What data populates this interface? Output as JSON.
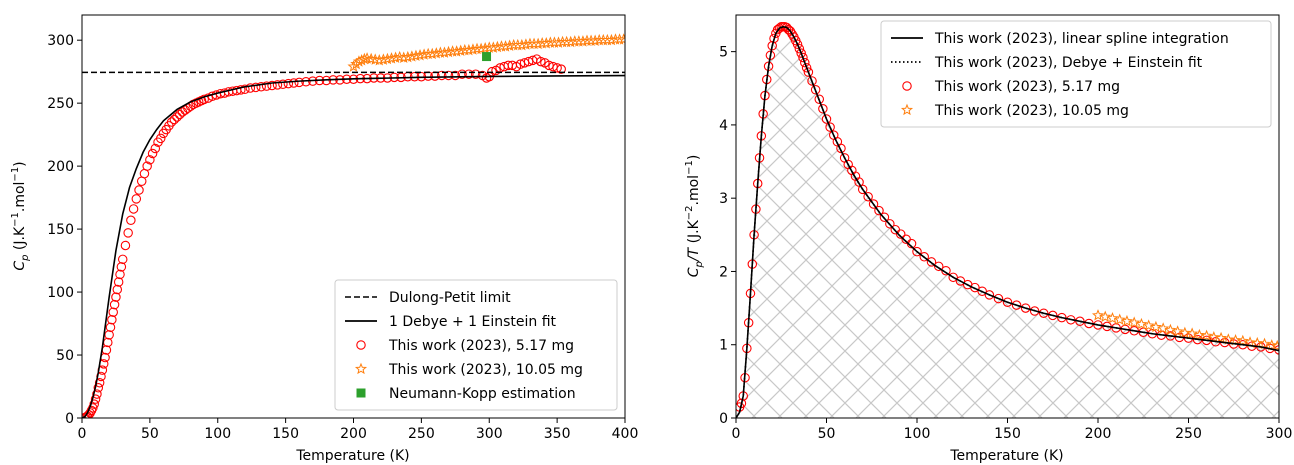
{
  "chart_data": [
    {
      "type": "scatter",
      "xlabel": "Temperature (K)",
      "ylabel_main": "C",
      "ylabel_sub": "p",
      "ylabel_unit": " (J.K",
      "ylabel_exp1": "−1",
      "ylabel_mid": ".mol",
      "ylabel_exp2": "−1",
      "ylabel_end": ")",
      "xlim": [
        0,
        400
      ],
      "ylim": [
        0,
        320
      ],
      "xticks": [
        0,
        50,
        100,
        150,
        200,
        250,
        300,
        350,
        400
      ],
      "yticks": [
        0,
        50,
        100,
        150,
        200,
        250,
        300
      ],
      "legend_position": "lower-right",
      "series": [
        {
          "name": "Dulong-Petit limit",
          "kind": "hline",
          "style": "dashed",
          "color": "#000000",
          "y": 274.4
        },
        {
          "name": "1 Debye + 1 Einstein fit",
          "kind": "line",
          "color": "#000000",
          "x": [
            0,
            2,
            4,
            6,
            8,
            10,
            12,
            15,
            20,
            25,
            30,
            35,
            40,
            45,
            50,
            55,
            60,
            70,
            80,
            90,
            100,
            120,
            140,
            160,
            180,
            200,
            250,
            300,
            350,
            400
          ],
          "y": [
            0,
            1,
            4,
            9,
            16,
            25,
            36,
            56,
            96,
            133,
            162,
            183,
            198,
            211,
            221,
            229,
            236,
            245,
            251,
            255,
            258,
            263,
            266,
            267.5,
            268.5,
            269.3,
            270.5,
            271.2,
            271.6,
            271.9
          ]
        },
        {
          "name": "This work (2023), 5.17 mg",
          "kind": "scatter",
          "marker": "circle-open",
          "color": "#ff0000",
          "x": [
            2,
            3,
            4,
            5,
            6,
            7,
            8,
            9,
            10,
            11,
            12,
            13,
            14,
            15,
            16,
            17,
            18,
            19,
            20,
            21,
            22,
            23,
            24,
            25,
            26,
            27,
            28,
            29,
            30,
            32,
            34,
            36,
            38,
            40,
            42,
            44,
            46,
            48,
            50,
            52,
            54,
            56,
            58,
            60,
            62,
            64,
            66,
            68,
            70,
            72,
            74,
            76,
            78,
            80,
            82,
            84,
            86,
            88,
            90,
            93,
            96,
            99,
            102,
            105,
            108,
            111,
            114,
            117,
            120,
            124,
            128,
            132,
            136,
            140,
            144,
            148,
            152,
            156,
            160,
            165,
            170,
            175,
            180,
            185,
            190,
            195,
            200,
            205,
            210,
            215,
            220,
            225,
            230,
            235,
            240,
            245,
            250,
            255,
            260,
            265,
            270,
            275,
            280,
            285,
            290,
            295,
            298,
            300,
            302,
            305,
            308,
            311,
            314,
            317,
            320,
            323,
            326,
            329,
            332,
            335,
            338,
            341,
            344,
            347,
            350,
            353
          ],
          "y": [
            0.3,
            0.8,
            1.5,
            2.6,
            4,
            6,
            8,
            11,
            15,
            19,
            24,
            28,
            33,
            38,
            43,
            48,
            54,
            60,
            66,
            72,
            78,
            84,
            90,
            96,
            102,
            108,
            114,
            120,
            126,
            137,
            147,
            157,
            166,
            174,
            181,
            188,
            194,
            200,
            205,
            210,
            214,
            219,
            222,
            226,
            229,
            232,
            235,
            237,
            239,
            241,
            243,
            244.5,
            246,
            247.5,
            249,
            250,
            251,
            252,
            253,
            254,
            255.5,
            256.5,
            257.5,
            258,
            259,
            259.5,
            260,
            260.5,
            261,
            262,
            262.5,
            263,
            263.5,
            264,
            264.5,
            265,
            265.5,
            266,
            266.5,
            267,
            267.5,
            268,
            268,
            268.5,
            268.5,
            269,
            269,
            269.5,
            269.5,
            270,
            270,
            270,
            270.5,
            270.5,
            271,
            271,
            271,
            271.5,
            271.5,
            272,
            272,
            272,
            273,
            273,
            273,
            272,
            270,
            271,
            275,
            276,
            278,
            279,
            280,
            280,
            279,
            281,
            282,
            283,
            284,
            285,
            283,
            282,
            280,
            279,
            278,
            277
          ]
        },
        {
          "name": "This work (2023), 10.05 mg",
          "kind": "scatter",
          "marker": "star",
          "color": "#ff7f0e",
          "x": [
            200,
            202,
            204,
            206,
            208,
            210,
            213,
            216,
            219,
            222,
            225,
            228,
            231,
            234,
            237,
            240,
            243,
            246,
            249,
            252,
            255,
            258,
            261,
            264,
            267,
            270,
            273,
            276,
            279,
            282,
            285,
            288,
            291,
            294,
            297,
            300,
            303,
            306,
            309,
            312,
            315,
            318,
            321,
            324,
            327,
            330,
            333,
            336,
            339,
            342,
            345,
            348,
            351,
            354,
            357,
            360,
            363,
            366,
            369,
            372,
            375,
            378,
            381,
            384,
            387,
            390,
            393,
            396,
            399
          ],
          "y": [
            279,
            281,
            283,
            284,
            285,
            285.5,
            285,
            284.5,
            284,
            284.5,
            285,
            285.5,
            286,
            286.5,
            286,
            286.5,
            287,
            287.5,
            288,
            288.5,
            289,
            289,
            289.5,
            290,
            290,
            290.5,
            291,
            291,
            291.5,
            292,
            292,
            292.5,
            293,
            293,
            293.5,
            294,
            294,
            294.5,
            295,
            295,
            295.5,
            296,
            296,
            296,
            296.5,
            297,
            297,
            297,
            297.5,
            297.5,
            298,
            298,
            298,
            298.5,
            298.5,
            298.5,
            299,
            299,
            299,
            299.5,
            299.5,
            299.5,
            300,
            300,
            300,
            300,
            300.5,
            300.5,
            300.5
          ]
        },
        {
          "name": "Neumann-Kopp estimation",
          "kind": "scatter",
          "marker": "square",
          "color": "#2ca02c",
          "x": [
            298
          ],
          "y": [
            287
          ]
        }
      ]
    },
    {
      "type": "line",
      "xlabel": "Temperature (K)",
      "ylabel_main": "C",
      "ylabel_sub": "p",
      "ylabel_div": "/T",
      "ylabel_unit": " (J.K",
      "ylabel_exp1": "−2",
      "ylabel_mid": ".mol",
      "ylabel_exp2": "−1",
      "ylabel_end": ")",
      "xlim": [
        0,
        300
      ],
      "ylim": [
        0,
        5.5
      ],
      "xticks": [
        0,
        50,
        100,
        150,
        200,
        250,
        300
      ],
      "yticks": [
        0,
        1,
        2,
        3,
        4,
        5
      ],
      "legend_position": "top-right",
      "hatched_area_under": "This work (2023), linear spline integration",
      "series": [
        {
          "name": "This work (2023), linear spline integration",
          "kind": "line",
          "style": "solid",
          "color": "#000000",
          "x": [
            0,
            2,
            4,
            6,
            8,
            10,
            12,
            14,
            16,
            18,
            20,
            22,
            24,
            26,
            28,
            30,
            32,
            34,
            36,
            38,
            40,
            45,
            50,
            55,
            60,
            65,
            70,
            80,
            90,
            100,
            110,
            120,
            130,
            140,
            150,
            160,
            170,
            180,
            190,
            200,
            210,
            220,
            230,
            240,
            250,
            260,
            270,
            280,
            290,
            300
          ],
          "y": [
            0,
            0.08,
            0.3,
            0.95,
            1.7,
            2.5,
            3.2,
            3.85,
            4.4,
            4.8,
            5.08,
            5.25,
            5.32,
            5.34,
            5.33,
            5.28,
            5.2,
            5.1,
            4.98,
            4.85,
            4.72,
            4.4,
            4.08,
            3.8,
            3.55,
            3.32,
            3.12,
            2.78,
            2.5,
            2.27,
            2.08,
            1.92,
            1.79,
            1.68,
            1.58,
            1.5,
            1.43,
            1.37,
            1.32,
            1.27,
            1.23,
            1.19,
            1.15,
            1.12,
            1.09,
            1.06,
            1.03,
            1.0,
            0.97,
            0.92
          ]
        },
        {
          "name": "This work (2023), Debye + Einstein fit",
          "kind": "line",
          "style": "dotted",
          "color": "#000000",
          "x": [
            0,
            2,
            4,
            6,
            8,
            10,
            12,
            14,
            16,
            18,
            20,
            22,
            24,
            26,
            28,
            30,
            32,
            34,
            36,
            38,
            40,
            45,
            50,
            55,
            60,
            65,
            70,
            80,
            90,
            100,
            110,
            120,
            130,
            140,
            150,
            160,
            170,
            180,
            190,
            200,
            210,
            220,
            230,
            240,
            250,
            260,
            270,
            280,
            290,
            300
          ],
          "y": [
            0,
            0.08,
            0.3,
            0.95,
            1.7,
            2.5,
            3.2,
            3.85,
            4.4,
            4.8,
            5.08,
            5.25,
            5.32,
            5.34,
            5.33,
            5.28,
            5.2,
            5.1,
            4.98,
            4.85,
            4.72,
            4.4,
            4.08,
            3.8,
            3.55,
            3.32,
            3.12,
            2.78,
            2.5,
            2.27,
            2.08,
            1.92,
            1.79,
            1.68,
            1.58,
            1.5,
            1.43,
            1.37,
            1.32,
            1.27,
            1.23,
            1.19,
            1.15,
            1.12,
            1.09,
            1.06,
            1.03,
            1.0,
            0.97,
            0.92
          ]
        },
        {
          "name": "This work (2023), 5.17 mg",
          "kind": "scatter",
          "marker": "circle-open",
          "color": "#ff0000",
          "x": [
            2,
            3,
            4,
            5,
            6,
            7,
            8,
            9,
            10,
            11,
            12,
            13,
            14,
            15,
            16,
            17,
            18,
            19,
            20,
            21,
            22,
            23,
            24,
            25,
            26,
            27,
            28,
            29,
            30,
            31,
            32,
            33,
            34,
            35,
            36,
            37,
            38,
            39,
            40,
            42,
            44,
            46,
            48,
            50,
            52,
            54,
            56,
            58,
            60,
            62,
            64,
            66,
            68,
            70,
            73,
            76,
            79,
            82,
            85,
            88,
            91,
            94,
            97,
            100,
            104,
            108,
            112,
            116,
            120,
            124,
            128,
            132,
            136,
            140,
            145,
            150,
            155,
            160,
            165,
            170,
            175,
            180,
            185,
            190,
            195,
            200,
            205,
            210,
            215,
            220,
            225,
            230,
            235,
            240,
            245,
            250,
            255,
            260,
            265,
            270,
            275,
            280,
            285,
            290,
            295,
            300
          ],
          "y": [
            0.15,
            0.2,
            0.3,
            0.55,
            0.95,
            1.3,
            1.7,
            2.1,
            2.5,
            2.85,
            3.2,
            3.55,
            3.85,
            4.15,
            4.4,
            4.62,
            4.8,
            4.95,
            5.08,
            5.18,
            5.25,
            5.3,
            5.32,
            5.34,
            5.34,
            5.34,
            5.33,
            5.3,
            5.28,
            5.24,
            5.2,
            5.15,
            5.1,
            5.04,
            4.98,
            4.92,
            4.85,
            4.78,
            4.72,
            4.6,
            4.48,
            4.35,
            4.22,
            4.08,
            3.97,
            3.86,
            3.77,
            3.68,
            3.55,
            3.46,
            3.38,
            3.3,
            3.22,
            3.12,
            3.02,
            2.92,
            2.83,
            2.74,
            2.65,
            2.57,
            2.51,
            2.44,
            2.38,
            2.27,
            2.2,
            2.13,
            2.07,
            2.01,
            1.92,
            1.87,
            1.82,
            1.78,
            1.73,
            1.68,
            1.63,
            1.58,
            1.54,
            1.5,
            1.46,
            1.43,
            1.4,
            1.37,
            1.34,
            1.32,
            1.29,
            1.27,
            1.25,
            1.23,
            1.21,
            1.19,
            1.17,
            1.15,
            1.13,
            1.12,
            1.1,
            1.09,
            1.07,
            1.06,
            1.04,
            1.03,
            1.01,
            1.0,
            0.98,
            0.97,
            0.95,
            0.93
          ]
        },
        {
          "name": "This work (2023), 10.05 mg",
          "kind": "scatter",
          "marker": "star",
          "color": "#ff7f0e",
          "x": [
            200,
            204,
            208,
            212,
            216,
            220,
            224,
            228,
            232,
            236,
            240,
            244,
            248,
            252,
            256,
            260,
            264,
            268,
            272,
            276,
            280,
            284,
            288,
            292,
            296,
            299
          ],
          "y": [
            1.4,
            1.38,
            1.36,
            1.34,
            1.32,
            1.3,
            1.28,
            1.26,
            1.24,
            1.22,
            1.2,
            1.18,
            1.16,
            1.15,
            1.13,
            1.12,
            1.1,
            1.09,
            1.07,
            1.06,
            1.05,
            1.03,
            1.02,
            1.01,
            0.99,
            0.98
          ]
        }
      ]
    }
  ]
}
